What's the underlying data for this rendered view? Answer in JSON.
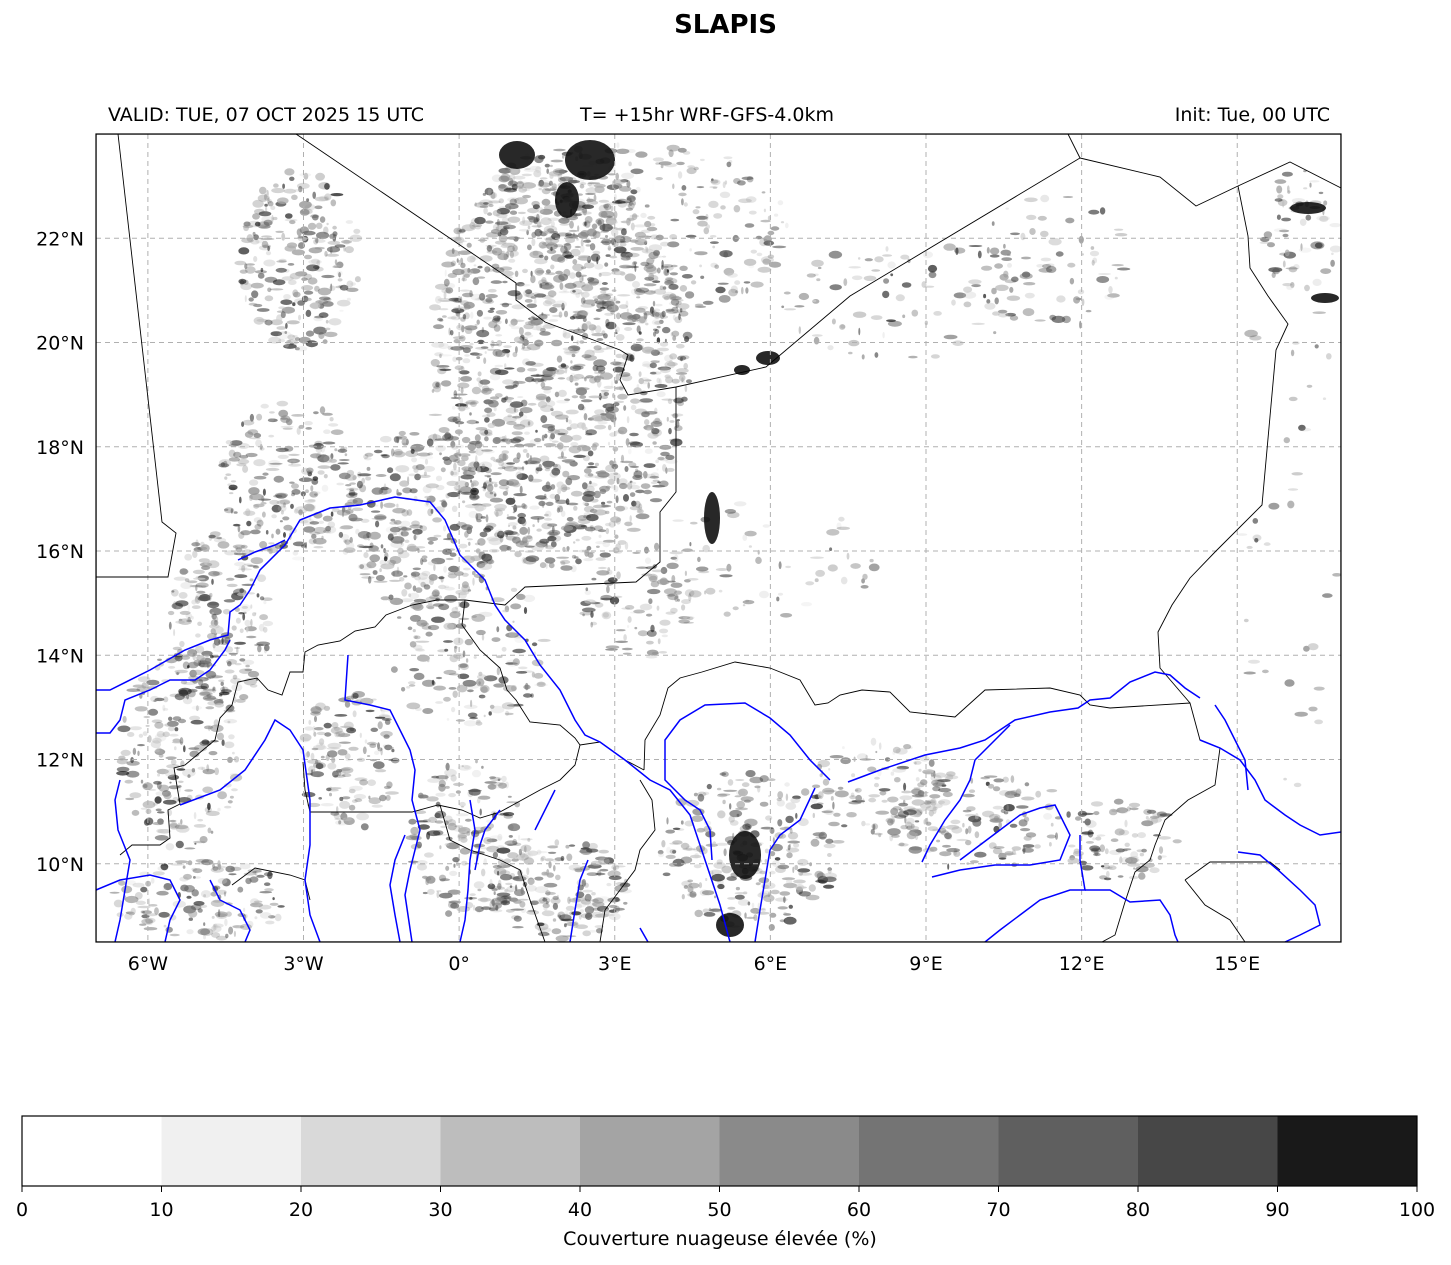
{
  "title": "SLAPIS",
  "header": {
    "valid": "VALID: TUE, 07 OCT 2025 15 UTC",
    "forecast": "T= +15hr WRF-GFS-4.0km",
    "init": "Init: Tue, 00 UTC"
  },
  "map": {
    "lon_range": [
      -7,
      17
    ],
    "lat_range": [
      8.5,
      24
    ],
    "lon_ticks": [
      {
        "value": -6,
        "label": "6°W"
      },
      {
        "value": -3,
        "label": "3°W"
      },
      {
        "value": 0,
        "label": "0°"
      },
      {
        "value": 3,
        "label": "3°E"
      },
      {
        "value": 6,
        "label": "6°E"
      },
      {
        "value": 9,
        "label": "9°E"
      },
      {
        "value": 12,
        "label": "12°E"
      },
      {
        "value": 15,
        "label": "15°E"
      }
    ],
    "lat_ticks": [
      {
        "value": 22,
        "label": "22°N"
      },
      {
        "value": 20,
        "label": "20°N"
      },
      {
        "value": 18,
        "label": "18°N"
      },
      {
        "value": 16,
        "label": "16°N"
      },
      {
        "value": 14,
        "label": "14°N"
      },
      {
        "value": 12,
        "label": "12°N"
      },
      {
        "value": 10,
        "label": "10°N"
      }
    ],
    "grid": true,
    "colors": {
      "borders": "#000000",
      "rivers": "#0000ff",
      "grid": "#b0b0b0"
    }
  },
  "colorbar": {
    "label": "Couverture nuageuse élevée (%)",
    "ticks": [
      "0",
      "10",
      "20",
      "30",
      "40",
      "50",
      "60",
      "70",
      "80",
      "90",
      "100"
    ],
    "colors": [
      "#ffffff",
      "#f0f0f0",
      "#d9d9d9",
      "#bdbdbd",
      "#a4a4a4",
      "#8a8a8a",
      "#747474",
      "#5f5f5f",
      "#474747",
      "#191919"
    ]
  }
}
